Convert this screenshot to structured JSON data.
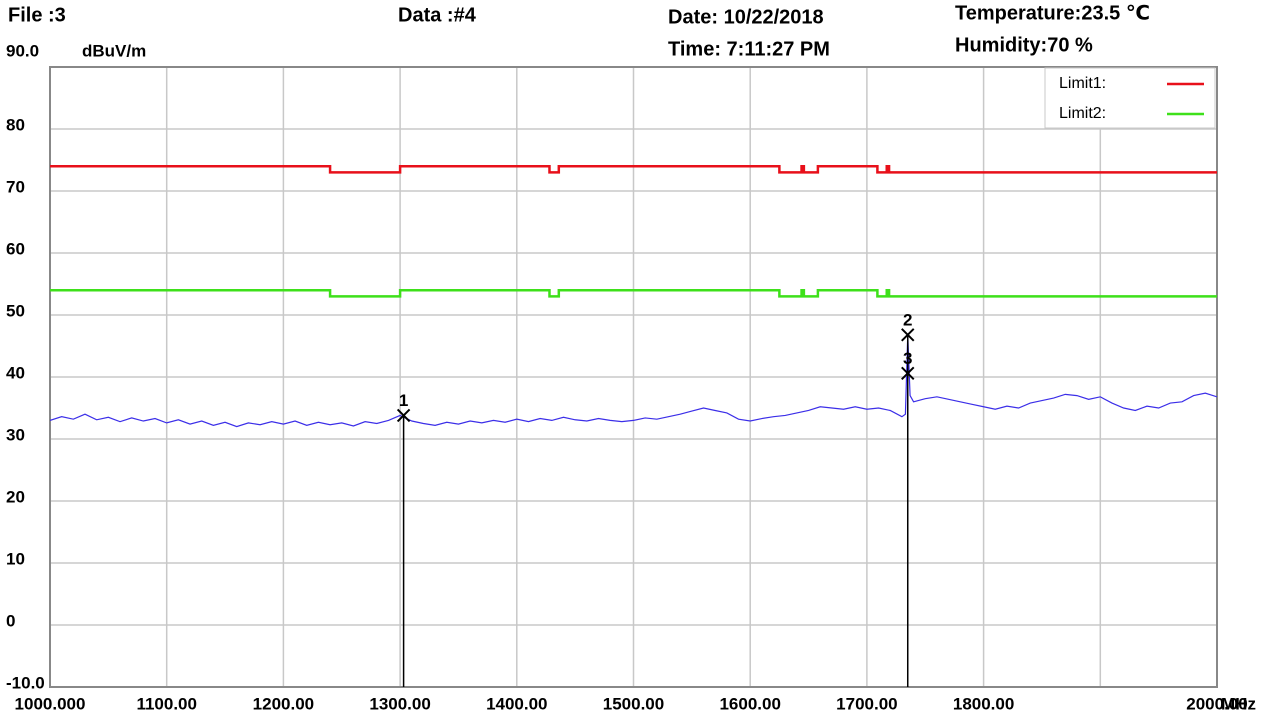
{
  "chart_data": {
    "type": "line",
    "header": {
      "file": "File :3",
      "data": "Data :#4",
      "date": "Date: 10/22/2018",
      "time": "Time: 7:11:27 PM",
      "temperature": "Temperature:23.5 ℃",
      "humidity": "Humidity:70 %"
    },
    "ylabel": "dBuV/m",
    "xlabel": "MHz",
    "xlim": [
      1000,
      2000
    ],
    "ylim": [
      -10,
      90
    ],
    "xticks": [
      {
        "value": 1000,
        "label": "1000.000"
      },
      {
        "value": 1100,
        "label": "1100.00"
      },
      {
        "value": 1200,
        "label": "1200.00"
      },
      {
        "value": 1300,
        "label": "1300.00"
      },
      {
        "value": 1400,
        "label": "1400.00"
      },
      {
        "value": 1500,
        "label": "1500.00"
      },
      {
        "value": 1600,
        "label": "1600.00"
      },
      {
        "value": 1700,
        "label": "1700.00"
      },
      {
        "value": 1800,
        "label": "1800.00"
      },
      {
        "value": 2000,
        "label": "2000.00"
      }
    ],
    "xgrid": [
      1100,
      1200,
      1300,
      1400,
      1500,
      1600,
      1700,
      1800,
      1900
    ],
    "yticks": [
      {
        "value": -10,
        "label": "-10.0"
      },
      0,
      10,
      20,
      30,
      40,
      50,
      60,
      70,
      80,
      {
        "value": 90,
        "label": "90.0"
      }
    ],
    "grid": true,
    "legend": "upper right",
    "series": [
      {
        "name": "Limit1:",
        "color": "#e8101a",
        "legend": true,
        "x": [
          1000,
          1240,
          1240,
          1300,
          1300,
          1428,
          1428,
          1436,
          1436,
          1625,
          1625,
          1644,
          1644,
          1646,
          1646,
          1658,
          1658,
          1709,
          1709,
          1717,
          1717,
          1719,
          1719,
          2000
        ],
        "values": [
          74,
          74,
          73,
          73,
          74,
          74,
          73,
          73,
          74,
          74,
          73,
          73,
          74,
          74,
          73,
          73,
          74,
          74,
          73,
          73,
          74,
          74,
          73,
          73
        ]
      },
      {
        "name": "Limit2:",
        "color": "#3ee01a",
        "legend": true,
        "x": [
          1000,
          1240,
          1240,
          1300,
          1300,
          1428,
          1428,
          1436,
          1436,
          1625,
          1625,
          1644,
          1644,
          1646,
          1646,
          1658,
          1658,
          1709,
          1709,
          1717,
          1717,
          1719,
          1719,
          2000
        ],
        "values": [
          54,
          54,
          53,
          53,
          54,
          54,
          53,
          53,
          54,
          54,
          53,
          53,
          54,
          54,
          53,
          53,
          54,
          54,
          53,
          53,
          54,
          54,
          53,
          53
        ]
      },
      {
        "color": "#3b2ee8",
        "legend": false,
        "x": [
          1000,
          1010,
          1020,
          1030,
          1040,
          1050,
          1060,
          1070,
          1080,
          1090,
          1100,
          1110,
          1120,
          1130,
          1140,
          1150,
          1160,
          1170,
          1180,
          1190,
          1200,
          1210,
          1220,
          1230,
          1240,
          1250,
          1260,
          1270,
          1280,
          1290,
          1300,
          1310,
          1320,
          1330,
          1340,
          1350,
          1360,
          1370,
          1380,
          1390,
          1400,
          1410,
          1420,
          1430,
          1440,
          1450,
          1460,
          1470,
          1480,
          1490,
          1500,
          1510,
          1520,
          1530,
          1540,
          1550,
          1560,
          1570,
          1580,
          1590,
          1600,
          1610,
          1620,
          1630,
          1640,
          1650,
          1660,
          1670,
          1680,
          1690,
          1700,
          1710,
          1720,
          1730,
          1733,
          1735,
          1737,
          1740,
          1750,
          1760,
          1770,
          1780,
          1790,
          1800,
          1810,
          1820,
          1830,
          1840,
          1850,
          1860,
          1870,
          1880,
          1890,
          1900,
          1910,
          1920,
          1930,
          1940,
          1950,
          1960,
          1970,
          1980,
          1990,
          2000
        ],
        "values": [
          33.0,
          33.6,
          33.2,
          34.0,
          33.1,
          33.5,
          32.8,
          33.4,
          32.9,
          33.3,
          32.6,
          33.1,
          32.4,
          32.9,
          32.2,
          32.7,
          32.0,
          32.6,
          32.3,
          32.8,
          32.4,
          32.9,
          32.2,
          32.7,
          32.3,
          32.6,
          32.1,
          32.8,
          32.5,
          33.0,
          33.8,
          32.9,
          32.5,
          32.2,
          32.7,
          32.4,
          32.9,
          32.6,
          33.0,
          32.7,
          33.2,
          32.8,
          33.3,
          33.0,
          33.5,
          33.1,
          32.9,
          33.3,
          33.0,
          32.8,
          33.0,
          33.4,
          33.2,
          33.6,
          34.0,
          34.5,
          35.0,
          34.6,
          34.2,
          33.2,
          32.9,
          33.3,
          33.6,
          33.8,
          34.2,
          34.6,
          35.2,
          35.0,
          34.8,
          35.2,
          34.8,
          35.0,
          34.6,
          33.6,
          34.0,
          46.8,
          37.0,
          36.0,
          36.5,
          36.8,
          36.4,
          36.0,
          35.6,
          35.2,
          34.8,
          35.3,
          35.0,
          35.8,
          36.2,
          36.6,
          37.2,
          37.0,
          36.4,
          36.8,
          35.8,
          35.0,
          34.6,
          35.3,
          35.0,
          35.8,
          36.0,
          37.0,
          37.4,
          36.8
        ]
      }
    ],
    "markers": [
      {
        "label": "1",
        "x": 1303,
        "y": 33.8
      },
      {
        "label": "2",
        "x": 1735,
        "y": 46.8
      },
      {
        "label": "3",
        "x": 1735,
        "y": 40.6
      }
    ]
  }
}
